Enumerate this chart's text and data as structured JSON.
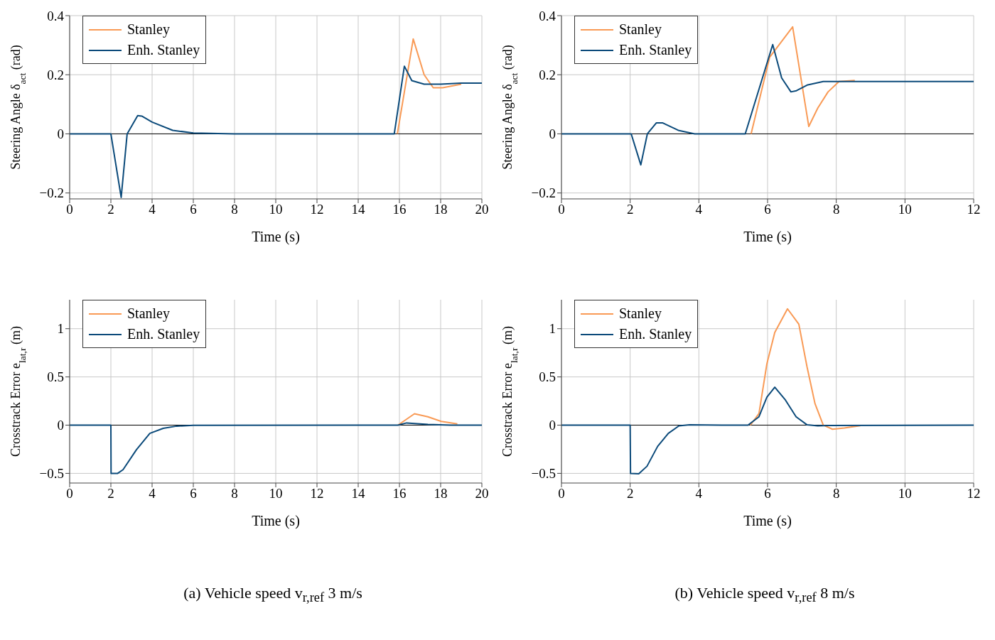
{
  "chart_data": [
    {
      "type": "line",
      "xlabel": "Time (s)",
      "ylabel": "Steering Angle δ$_{act}$ (rad)",
      "xlim": [
        0,
        20
      ],
      "xticks": [
        0,
        2,
        4,
        6,
        8,
        10,
        12,
        14,
        16,
        18,
        20
      ],
      "ylim": [
        -0.22,
        0.4
      ],
      "yticks": [
        -0.2,
        0,
        0.2,
        0.4
      ],
      "grid": true,
      "legend": "top left",
      "ref_lines": [
        {
          "axis": "y",
          "value": 0,
          "color": "#000000"
        }
      ],
      "series": [
        {
          "name": "Stanley",
          "color": "#f99a55",
          "x": [
            15.9,
            16.67,
            17.2,
            17.64,
            18.1,
            19.0
          ],
          "values": [
            0,
            0.321,
            0.2,
            0.156,
            0.156,
            0.168
          ]
        },
        {
          "name": "Enh. Stanley",
          "color": "#0b4a7a",
          "x": [
            0,
            2.0,
            2.5,
            2.79,
            3.3,
            3.5,
            4.0,
            5.0,
            6.0,
            8.0,
            15.75,
            16.24,
            16.6,
            17.2,
            18.0,
            19.0,
            20.0
          ],
          "values": [
            0,
            0,
            -0.215,
            0,
            0.062,
            0.06,
            0.04,
            0.012,
            0.003,
            0,
            0,
            0.229,
            0.18,
            0.168,
            0.168,
            0.172,
            0.172
          ]
        }
      ]
    },
    {
      "type": "line",
      "xlabel": "Time (s)",
      "ylabel": "Steering Angle δ$_{act}$ (rad)",
      "xlim": [
        0,
        12
      ],
      "xticks": [
        0,
        2,
        4,
        6,
        8,
        10,
        12
      ],
      "ylim": [
        -0.22,
        0.4
      ],
      "yticks": [
        -0.2,
        0,
        0.2,
        0.4
      ],
      "grid": true,
      "legend": "top left",
      "ref_lines": [
        {
          "axis": "y",
          "value": 0,
          "color": "#000000"
        }
      ],
      "series": [
        {
          "name": "Stanley",
          "color": "#f99a55",
          "x": [
            5.52,
            6.06,
            6.73,
            7.2,
            7.46,
            7.76,
            8.08,
            8.54
          ],
          "values": [
            0,
            0.259,
            0.362,
            0.025,
            0.087,
            0.142,
            0.177,
            0.181
          ]
        },
        {
          "name": "Enh. Stanley",
          "color": "#0b4a7a",
          "x": [
            0,
            2.03,
            2.31,
            2.5,
            2.76,
            2.95,
            3.4,
            3.88,
            5.35,
            6.15,
            6.41,
            6.68,
            6.84,
            7.15,
            7.62,
            12
          ],
          "values": [
            0,
            0,
            -0.105,
            0,
            0.037,
            0.037,
            0.012,
            0,
            0,
            0.302,
            0.189,
            0.142,
            0.146,
            0.165,
            0.177,
            0.177
          ]
        }
      ]
    },
    {
      "type": "line",
      "xlabel": "Time (s)",
      "ylabel": "Crosstrack Error e$_{lat,r}$ (m)",
      "xlim": [
        0,
        20
      ],
      "xticks": [
        0,
        2,
        4,
        6,
        8,
        10,
        12,
        14,
        16,
        18,
        20
      ],
      "ylim": [
        -0.6,
        1.3
      ],
      "yticks": [
        -0.5,
        0,
        0.5,
        1
      ],
      "grid": true,
      "legend": "top left",
      "ref_lines": [
        {
          "axis": "y",
          "value": 0,
          "color": "#000000"
        }
      ],
      "annotations": [
        "(a) Vehicle speed v$_{r,ref}$ 3 m/s"
      ],
      "series": [
        {
          "name": "Stanley",
          "color": "#f99a55",
          "x": [
            15.93,
            16.73,
            17.38,
            18.03,
            18.81
          ],
          "values": [
            0,
            0.118,
            0.087,
            0.039,
            0.013
          ]
        },
        {
          "name": "Enh. Stanley",
          "color": "#0b4a7a",
          "x": [
            0,
            2.0,
            2.01,
            2.33,
            2.59,
            3.24,
            3.89,
            4.54,
            5.19,
            6.0,
            15.93,
            16.35,
            17.38,
            18.5,
            20
          ],
          "values": [
            0,
            0,
            -0.5,
            -0.5,
            -0.462,
            -0.255,
            -0.085,
            -0.033,
            -0.01,
            -0.002,
            0,
            0.023,
            0.008,
            0.001,
            0
          ]
        }
      ]
    },
    {
      "type": "line",
      "xlabel": "Time (s)",
      "ylabel": "Crosstrack Error e$_{lat,r}$ (m)",
      "xlim": [
        0,
        12
      ],
      "xticks": [
        0,
        2,
        4,
        6,
        8,
        10,
        12
      ],
      "ylim": [
        -0.6,
        1.3
      ],
      "yticks": [
        -0.5,
        0,
        0.5,
        1
      ],
      "grid": true,
      "legend": "top left",
      "ref_lines": [
        {
          "axis": "y",
          "value": 0,
          "color": "#000000"
        }
      ],
      "annotations": [
        "(b) Vehicle speed v$_{r,ref}$ 8 m/s"
      ],
      "series": [
        {
          "name": "Stanley",
          "color": "#f99a55",
          "x": [
            5.5,
            5.75,
            5.98,
            6.21,
            6.58,
            6.91,
            7.15,
            7.38,
            7.62,
            7.89,
            8.24,
            8.7
          ],
          "values": [
            0,
            0.121,
            0.636,
            0.961,
            1.206,
            1.047,
            0.602,
            0.224,
            0.001,
            -0.042,
            -0.03,
            -0.006
          ]
        },
        {
          "name": "Enh. Stanley",
          "color": "#0b4a7a",
          "x": [
            0,
            2.0,
            2.01,
            2.25,
            2.49,
            2.8,
            3.11,
            3.42,
            3.73,
            4.66,
            5.43,
            5.75,
            5.98,
            6.21,
            6.52,
            6.83,
            7.15,
            7.46,
            7.77,
            12
          ],
          "values": [
            0,
            0,
            -0.5,
            -0.505,
            -0.426,
            -0.22,
            -0.085,
            -0.007,
            0.003,
            0,
            0,
            0.087,
            0.29,
            0.394,
            0.26,
            0.087,
            0.003,
            -0.007,
            -0.003,
            0
          ]
        }
      ]
    }
  ]
}
